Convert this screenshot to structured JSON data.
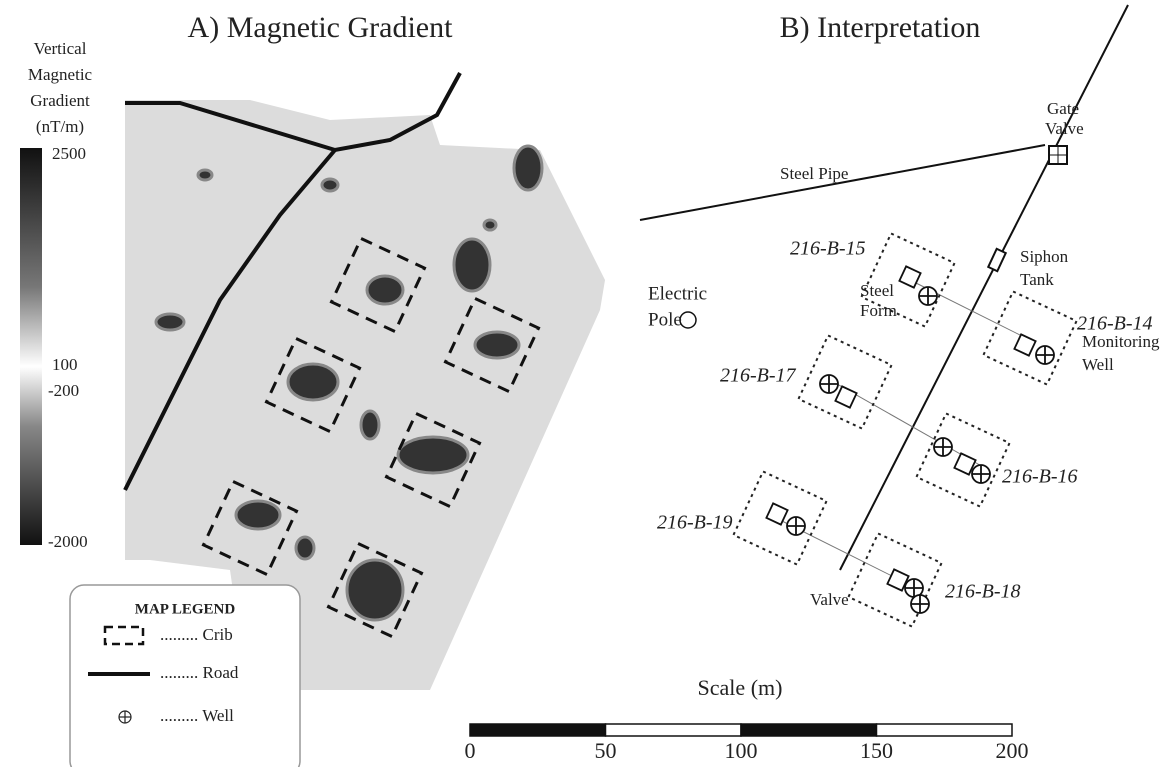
{
  "panel_a": {
    "title": "A) Magnetic Gradient",
    "colorbar": {
      "label": [
        "Vertical",
        "Magnetic",
        "Gradient",
        "(nT/m)"
      ],
      "ticks": [
        2500,
        100,
        -200,
        -2000
      ]
    },
    "legend": {
      "title": "MAP LEGEND",
      "items": [
        "......... Crib",
        "......... Road",
        "......... Well"
      ]
    }
  },
  "panel_b": {
    "title": "B) Interpretation",
    "labels": {
      "gate": [
        "Gate",
        "Valve"
      ],
      "pipe": "Steel Pipe",
      "siphon": [
        "Siphon",
        "Tank"
      ],
      "pole": [
        "Electric",
        "Pole"
      ],
      "form": [
        "Steel",
        "Form"
      ],
      "monitoring": [
        "Monitoring",
        "Well"
      ],
      "valve": "Valve"
    },
    "cribs": [
      "216-B-15",
      "216-B-14",
      "216-B-17",
      "216-B-16",
      "216-B-19",
      "216-B-18"
    ]
  },
  "scale": {
    "label": "Scale (m)",
    "ticks": [
      0,
      50,
      100,
      150,
      200
    ]
  }
}
